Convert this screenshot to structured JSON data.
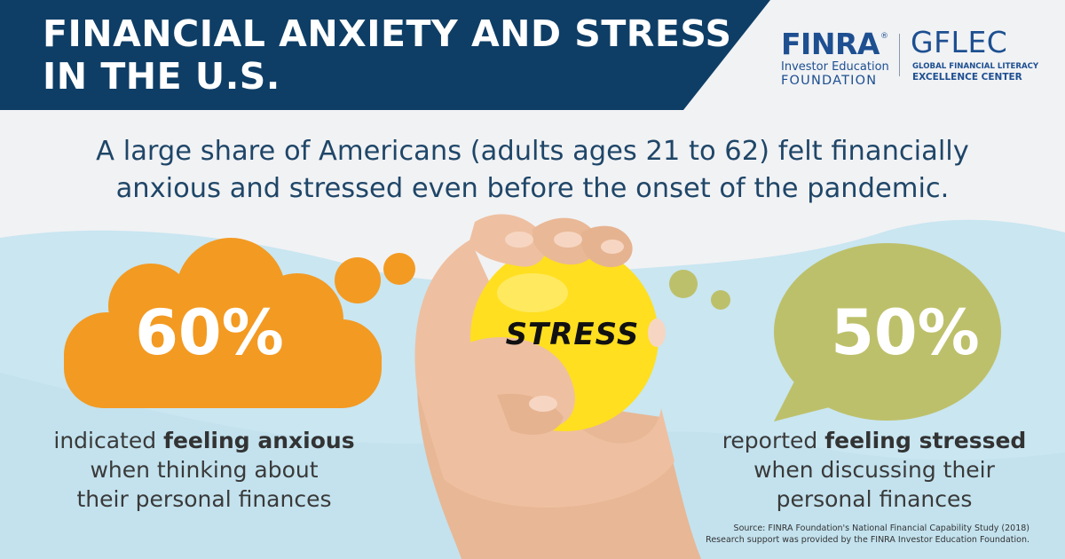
{
  "header": {
    "title_line1": "FINANCIAL ANXIETY AND STRESS",
    "title_line2": "IN THE U.S."
  },
  "logos": {
    "finra": {
      "name": "FINRA",
      "registered": "®",
      "subtitle_line1": "Investor Education",
      "subtitle_line2": "FOUNDATION"
    },
    "gflec": {
      "name": "GFLEC",
      "subtitle_line1": "GLOBAL FINANCIAL LITERACY",
      "subtitle_line2": "EXCELLENCE CENTER"
    }
  },
  "subtitle": {
    "line1": "A large share of Americans (adults ages 21 to 62) felt financially",
    "line2": "anxious and stressed even before the onset of the pandemic."
  },
  "stats": {
    "left": {
      "value": "60%",
      "desc_prefix": "indicated ",
      "desc_bold": "feeling anxious",
      "desc_line2": "when thinking about",
      "desc_line3": "their personal finances"
    },
    "right": {
      "value": "50%",
      "desc_prefix": "reported ",
      "desc_bold": "feeling stressed",
      "desc_line2": "when discussing their",
      "desc_line3": "personal finances"
    }
  },
  "illustration": {
    "ball_label": "STRESS",
    "icon": "hand-squeezing-stress-ball"
  },
  "source": {
    "line1": "Source: FINRA Foundation's National Financial Capability Study (2018)",
    "line2": "Research support was provided by the FINRA Investor Education Foundation."
  },
  "colors": {
    "navy": "#0e3e66",
    "orange": "#f39a22",
    "olive": "#bdc06a",
    "light_blue": "#c9e6f1",
    "ball_yellow": "#ffdf1f",
    "text_dark": "#1f4668"
  }
}
